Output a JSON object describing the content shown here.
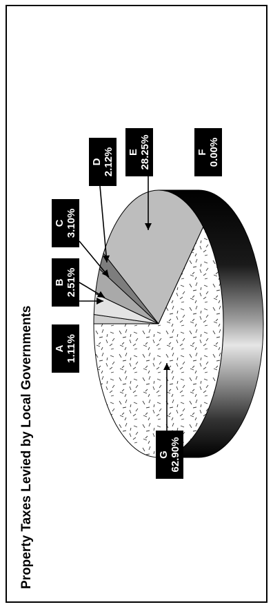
{
  "chart_data": {
    "type": "pie",
    "title": "Property Taxes Levied by Local Governments",
    "categories": [
      "A",
      "B",
      "C",
      "D",
      "E",
      "F",
      "G"
    ],
    "values": [
      1.11,
      2.51,
      3.1,
      2.12,
      28.25,
      0.0,
      62.9
    ],
    "value_labels": [
      "1.11%",
      "2.51%",
      "3.10%",
      "2.12%",
      "28.25%",
      "0.00%",
      "62.90%"
    ],
    "colors": [
      "#cfcfcf",
      "#e3e3e3",
      "#a9a9a9",
      "#7d7d7d",
      "#bdbdbd",
      "#ffffff",
      "#f4f4f4"
    ],
    "style": "3d-exploded-pie-rotated",
    "legend": "none"
  }
}
